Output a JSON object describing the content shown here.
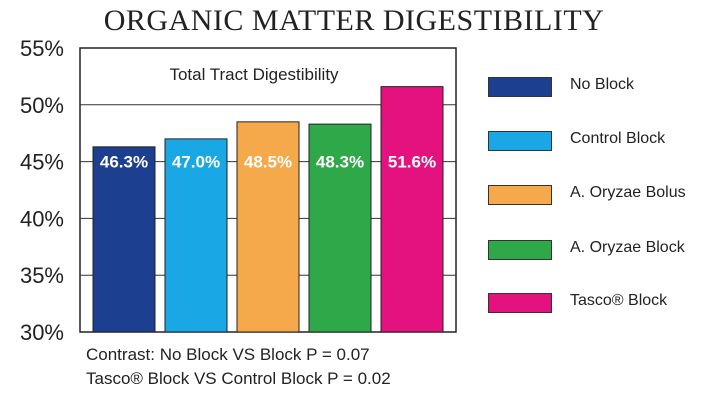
{
  "chart_data": {
    "type": "bar",
    "title": "ORGANIC MATTER DIGESTIBILITY",
    "subtitle": "Total Tract Digestibility",
    "categories": [
      "No Block",
      "Control Block",
      "A. Oryzae Bolus",
      "A. Oryzae Block",
      "Tasco® Block"
    ],
    "values": [
      46.3,
      47.0,
      48.5,
      48.3,
      51.6
    ],
    "data_labels": [
      "46.3%",
      "47.0%",
      "48.5%",
      "48.3%",
      "51.6%"
    ],
    "colors": [
      "#1d3f8f",
      "#1aa7e6",
      "#f5a94a",
      "#2fa84a",
      "#e3127e"
    ],
    "ylim": [
      30,
      55
    ],
    "yticks": [
      "30%",
      "35%",
      "40%",
      "45%",
      "50%",
      "55%"
    ],
    "grid": true,
    "legend": "right"
  },
  "notes": [
    "Contrast: No Block VS Block P = 0.07",
    "Tasco® Block VS Control Block P = 0.02"
  ]
}
